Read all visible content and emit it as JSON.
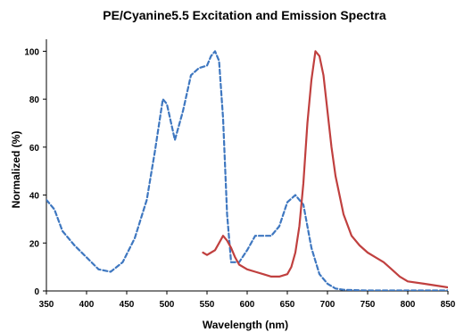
{
  "chart_data": {
    "type": "line",
    "title": "PE/Cyanine5.5 Excitation and Emission Spectra",
    "xlabel": "Wavelength (nm)",
    "ylabel": "Normalized (%)",
    "xlim": [
      350,
      850
    ],
    "ylim": [
      0,
      105
    ],
    "xticks": [
      350,
      400,
      450,
      500,
      550,
      600,
      650,
      700,
      750,
      800,
      850
    ],
    "yticks": [
      0,
      20,
      40,
      60,
      80,
      100
    ],
    "grid": false,
    "legend": "none",
    "series": [
      {
        "style": "dashed",
        "color": "#3e77c0",
        "x": [
          350,
          360,
          370,
          385,
          400,
          415,
          430,
          445,
          460,
          475,
          485,
          495,
          500,
          510,
          520,
          530,
          540,
          550,
          555,
          560,
          565,
          570,
          575,
          580,
          590,
          600,
          610,
          620,
          630,
          640,
          650,
          660,
          670,
          680,
          690,
          700,
          710,
          720,
          750,
          800,
          850
        ],
        "y": [
          38,
          34,
          25,
          19,
          14,
          9,
          8,
          12,
          22,
          38,
          58,
          80,
          78,
          63,
          75,
          90,
          93,
          94,
          98,
          100,
          96,
          72,
          32,
          12,
          12,
          17,
          23,
          23,
          23,
          27,
          37,
          40,
          36,
          18,
          7,
          3,
          1,
          0.5,
          0.2,
          0.2,
          0.2
        ]
      },
      {
        "style": "solid",
        "color": "#c0403f",
        "x": [
          545,
          550,
          555,
          560,
          565,
          570,
          575,
          580,
          585,
          590,
          600,
          610,
          620,
          630,
          640,
          650,
          655,
          660,
          665,
          670,
          675,
          680,
          685,
          690,
          695,
          700,
          705,
          710,
          720,
          730,
          740,
          750,
          760,
          770,
          780,
          790,
          800,
          820,
          840,
          850
        ],
        "y": [
          16,
          15,
          16,
          17,
          20,
          23,
          21,
          18,
          14,
          11,
          9,
          8,
          7,
          6,
          6,
          7,
          10,
          16,
          27,
          45,
          70,
          88,
          100,
          98,
          90,
          75,
          60,
          48,
          32,
          23,
          19,
          16,
          14,
          12,
          9,
          6,
          4,
          3,
          2,
          1.5
        ]
      }
    ]
  }
}
